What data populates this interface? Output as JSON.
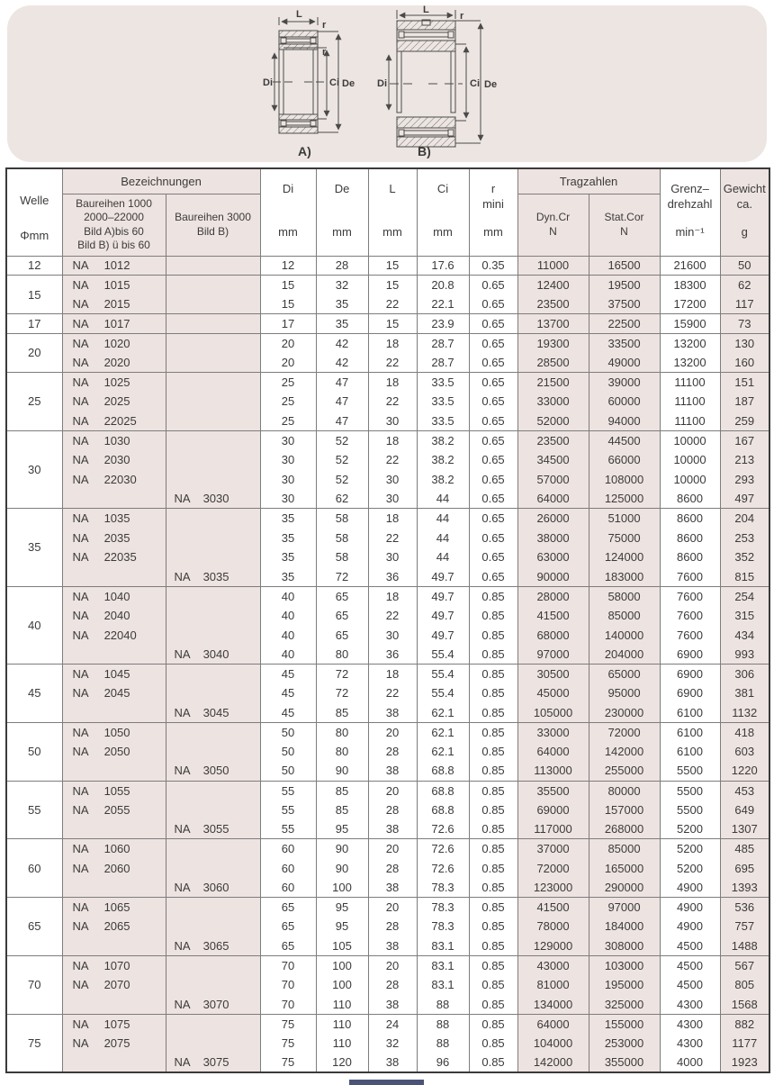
{
  "diagram": {
    "labels": {
      "l": "L",
      "r": "r",
      "di": "Di",
      "ci": "Ci",
      "de": "De",
      "fig_a": "A)",
      "fig_b": "B)"
    },
    "colors": {
      "panel_bg": "#ede5e2",
      "line": "#4a4a4a"
    }
  },
  "table": {
    "na_prefix": "NA",
    "colors": {
      "pink_cell": "#ede3e0",
      "white_cell": "#ffffff",
      "border": "#7d7d7d"
    },
    "header": {
      "welle": "Welle",
      "phi_mm": "Φmm",
      "bezeichnungen": "Bezeichnungen",
      "baureihen_a": "Baureihen 1000\n2000–22000\nBild A)bis 60\nBild B) ü bis 60",
      "baureihen_b": "Baureihen 3000\nBild B)",
      "di": "Di",
      "de": "De",
      "l": "L",
      "ci": "Ci",
      "r": "r\nmini",
      "mm": "mm",
      "tragzahlen": "Tragzahlen",
      "dyn": "Dyn.Cr\nN",
      "stat": "Stat.Cor\nN",
      "grenz": "Grenz–\ndrehzahl",
      "grenz_unit": "min⁻¹",
      "gewicht": "Gewicht\nca.",
      "gewicht_unit": "g"
    },
    "groups": [
      {
        "welle": "12",
        "rows": [
          [
            "A",
            "1012",
            "12",
            "28",
            "15",
            "17.6",
            "0.35",
            "11000",
            "16500",
            "21600",
            "50"
          ]
        ]
      },
      {
        "welle": "15",
        "rows": [
          [
            "A",
            "1015",
            "15",
            "32",
            "15",
            "20.8",
            "0.65",
            "12400",
            "19500",
            "18300",
            "62"
          ],
          [
            "A",
            "2015",
            "15",
            "35",
            "22",
            "22.1",
            "0.65",
            "23500",
            "37500",
            "17200",
            "117"
          ]
        ]
      },
      {
        "welle": "17",
        "rows": [
          [
            "A",
            "1017",
            "17",
            "35",
            "15",
            "23.9",
            "0.65",
            "13700",
            "22500",
            "15900",
            "73"
          ]
        ]
      },
      {
        "welle": "20",
        "rows": [
          [
            "A",
            "1020",
            "20",
            "42",
            "18",
            "28.7",
            "0.65",
            "19300",
            "33500",
            "13200",
            "130"
          ],
          [
            "A",
            "2020",
            "20",
            "42",
            "22",
            "28.7",
            "0.65",
            "28500",
            "49000",
            "13200",
            "160"
          ]
        ]
      },
      {
        "welle": "25",
        "rows": [
          [
            "A",
            "1025",
            "25",
            "47",
            "18",
            "33.5",
            "0.65",
            "21500",
            "39000",
            "11100",
            "151"
          ],
          [
            "A",
            "2025",
            "25",
            "47",
            "22",
            "33.5",
            "0.65",
            "33000",
            "60000",
            "11100",
            "187"
          ],
          [
            "A",
            "22025",
            "25",
            "47",
            "30",
            "33.5",
            "0.65",
            "52000",
            "94000",
            "11100",
            "259"
          ]
        ]
      },
      {
        "welle": "30",
        "rows": [
          [
            "A",
            "1030",
            "30",
            "52",
            "18",
            "38.2",
            "0.65",
            "23500",
            "44500",
            "10000",
            "167"
          ],
          [
            "A",
            "2030",
            "30",
            "52",
            "22",
            "38.2",
            "0.65",
            "34500",
            "66000",
            "10000",
            "213"
          ],
          [
            "A",
            "22030",
            "30",
            "52",
            "30",
            "38.2",
            "0.65",
            "57000",
            "108000",
            "10000",
            "293"
          ],
          [
            "B",
            "3030",
            "30",
            "62",
            "30",
            "44",
            "0.65",
            "64000",
            "125000",
            "8600",
            "497"
          ]
        ]
      },
      {
        "welle": "35",
        "rows": [
          [
            "A",
            "1035",
            "35",
            "58",
            "18",
            "44",
            "0.65",
            "26000",
            "51000",
            "8600",
            "204"
          ],
          [
            "A",
            "2035",
            "35",
            "58",
            "22",
            "44",
            "0.65",
            "38000",
            "75000",
            "8600",
            "253"
          ],
          [
            "A",
            "22035",
            "35",
            "58",
            "30",
            "44",
            "0.65",
            "63000",
            "124000",
            "8600",
            "352"
          ],
          [
            "B",
            "3035",
            "35",
            "72",
            "36",
            "49.7",
            "0.65",
            "90000",
            "183000",
            "7600",
            "815"
          ]
        ]
      },
      {
        "welle": "40",
        "rows": [
          [
            "A",
            "1040",
            "40",
            "65",
            "18",
            "49.7",
            "0.85",
            "28000",
            "58000",
            "7600",
            "254"
          ],
          [
            "A",
            "2040",
            "40",
            "65",
            "22",
            "49.7",
            "0.85",
            "41500",
            "85000",
            "7600",
            "315"
          ],
          [
            "A",
            "22040",
            "40",
            "65",
            "30",
            "49.7",
            "0.85",
            "68000",
            "140000",
            "7600",
            "434"
          ],
          [
            "B",
            "3040",
            "40",
            "80",
            "36",
            "55.4",
            "0.85",
            "97000",
            "204000",
            "6900",
            "993"
          ]
        ]
      },
      {
        "welle": "45",
        "rows": [
          [
            "A",
            "1045",
            "45",
            "72",
            "18",
            "55.4",
            "0.85",
            "30500",
            "65000",
            "6900",
            "306"
          ],
          [
            "A",
            "2045",
            "45",
            "72",
            "22",
            "55.4",
            "0.85",
            "45000",
            "95000",
            "6900",
            "381"
          ],
          [
            "B",
            "3045",
            "45",
            "85",
            "38",
            "62.1",
            "0.85",
            "105000",
            "230000",
            "6100",
            "1132"
          ]
        ]
      },
      {
        "welle": "50",
        "rows": [
          [
            "A",
            "1050",
            "50",
            "80",
            "20",
            "62.1",
            "0.85",
            "33000",
            "72000",
            "6100",
            "418"
          ],
          [
            "A",
            "2050",
            "50",
            "80",
            "28",
            "62.1",
            "0.85",
            "64000",
            "142000",
            "6100",
            "603"
          ],
          [
            "B",
            "3050",
            "50",
            "90",
            "38",
            "68.8",
            "0.85",
            "113000",
            "255000",
            "5500",
            "1220"
          ]
        ]
      },
      {
        "welle": "55",
        "rows": [
          [
            "A",
            "1055",
            "55",
            "85",
            "20",
            "68.8",
            "0.85",
            "35500",
            "80000",
            "5500",
            "453"
          ],
          [
            "A",
            "2055",
            "55",
            "85",
            "28",
            "68.8",
            "0.85",
            "69000",
            "157000",
            "5500",
            "649"
          ],
          [
            "B",
            "3055",
            "55",
            "95",
            "38",
            "72.6",
            "0.85",
            "117000",
            "268000",
            "5200",
            "1307"
          ]
        ]
      },
      {
        "welle": "60",
        "rows": [
          [
            "A",
            "1060",
            "60",
            "90",
            "20",
            "72.6",
            "0.85",
            "37000",
            "85000",
            "5200",
            "485"
          ],
          [
            "A",
            "2060",
            "60",
            "90",
            "28",
            "72.6",
            "0.85",
            "72000",
            "165000",
            "5200",
            "695"
          ],
          [
            "B",
            "3060",
            "60",
            "100",
            "38",
            "78.3",
            "0.85",
            "123000",
            "290000",
            "4900",
            "1393"
          ]
        ]
      },
      {
        "welle": "65",
        "rows": [
          [
            "A",
            "1065",
            "65",
            "95",
            "20",
            "78.3",
            "0.85",
            "41500",
            "97000",
            "4900",
            "536"
          ],
          [
            "A",
            "2065",
            "65",
            "95",
            "28",
            "78.3",
            "0.85",
            "78000",
            "184000",
            "4900",
            "757"
          ],
          [
            "B",
            "3065",
            "65",
            "105",
            "38",
            "83.1",
            "0.85",
            "129000",
            "308000",
            "4500",
            "1488"
          ]
        ]
      },
      {
        "welle": "70",
        "rows": [
          [
            "A",
            "1070",
            "70",
            "100",
            "20",
            "83.1",
            "0.85",
            "43000",
            "103000",
            "4500",
            "567"
          ],
          [
            "A",
            "2070",
            "70",
            "100",
            "28",
            "83.1",
            "0.85",
            "81000",
            "195000",
            "4500",
            "805"
          ],
          [
            "B",
            "3070",
            "70",
            "110",
            "38",
            "88",
            "0.85",
            "134000",
            "325000",
            "4300",
            "1568"
          ]
        ]
      },
      {
        "welle": "75",
        "rows": [
          [
            "A",
            "1075",
            "75",
            "110",
            "24",
            "88",
            "0.85",
            "64000",
            "155000",
            "4300",
            "882"
          ],
          [
            "A",
            "2075",
            "75",
            "110",
            "32",
            "88",
            "0.85",
            "104000",
            "253000",
            "4300",
            "1177"
          ],
          [
            "B",
            "3075",
            "75",
            "120",
            "38",
            "96",
            "0.85",
            "142000",
            "355000",
            "4000",
            "1923"
          ]
        ]
      }
    ]
  }
}
